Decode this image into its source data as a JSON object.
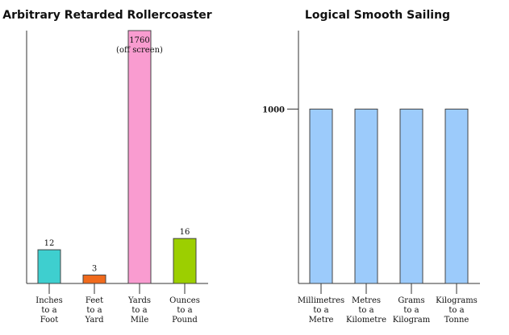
{
  "chart_data": [
    {
      "type": "bar",
      "title": "Arbitrary Retarded Rollercoaster",
      "categories": [
        [
          "Inches",
          "to a",
          "Foot"
        ],
        [
          "Feet",
          "to a",
          "Yard"
        ],
        [
          "Yards",
          "to a",
          "Mile"
        ],
        [
          "Ounces",
          "to a",
          "Pound"
        ]
      ],
      "values": [
        12,
        3,
        1760,
        16
      ],
      "data_labels": [
        "12",
        "3",
        "1760",
        "16"
      ],
      "offscreen_note": "(off screen)",
      "colors": [
        "#3ecfcf",
        "#f06a1c",
        "#f99cd0",
        "#9ccf00"
      ],
      "ylim": [
        0,
        90
      ]
    },
    {
      "type": "bar",
      "title": "Logical Smooth Sailing",
      "categories": [
        [
          "Millimetres",
          "to a",
          "Metre"
        ],
        [
          "Metres",
          "to a",
          "Kilometre"
        ],
        [
          "Grams",
          "to a",
          "Kilogram"
        ],
        [
          "Kilograms",
          "to a",
          "Tonne"
        ]
      ],
      "values": [
        1000,
        1000,
        1000,
        1000
      ],
      "yticks": [
        "1000"
      ],
      "colors": [
        "#9ccbfb",
        "#9ccbfb",
        "#9ccbfb",
        "#9ccbfb"
      ],
      "ylim": [
        0,
        1450
      ]
    }
  ]
}
